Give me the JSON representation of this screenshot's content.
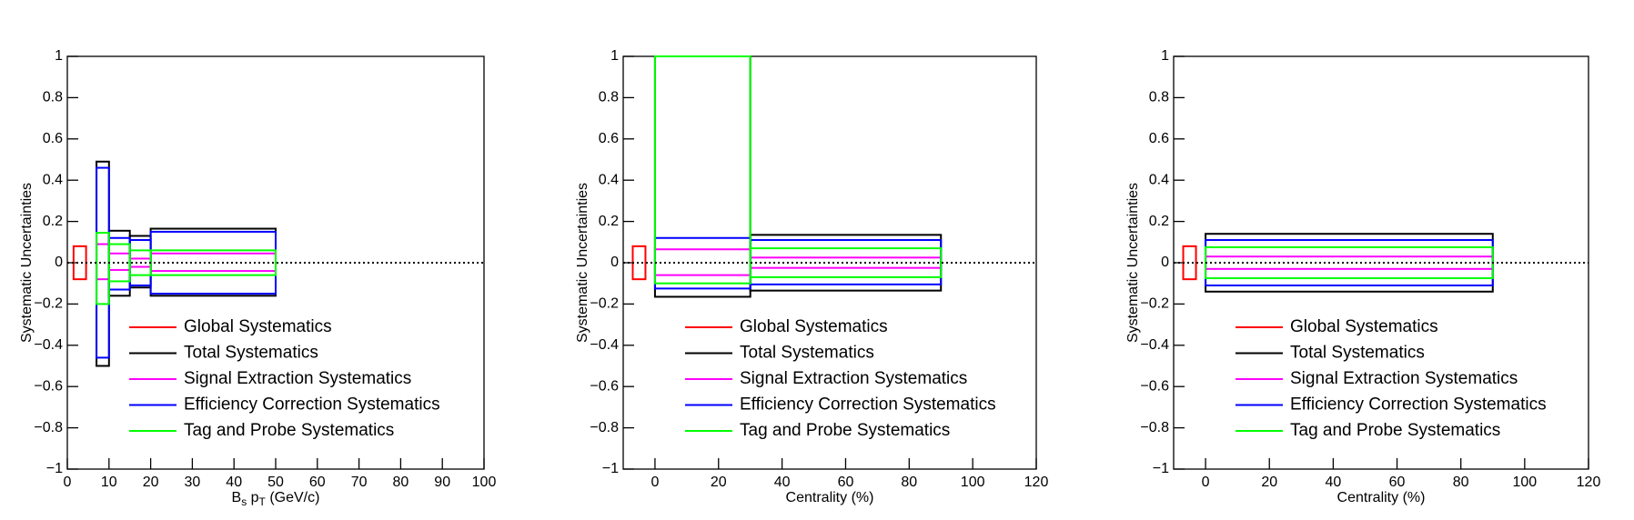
{
  "chart_data": [
    {
      "type": "box",
      "y_label": "Systematic Uncertainties",
      "x_label_parts": [
        "B",
        "s",
        " p",
        "T",
        " (GeV/c)"
      ],
      "xlim": [
        0,
        100
      ],
      "xticks": [
        0,
        10,
        20,
        30,
        40,
        50,
        60,
        70,
        80,
        90,
        100
      ],
      "ylim": [
        -1,
        1
      ],
      "yticks": [
        {
          "value": -1,
          "label": "−1"
        },
        {
          "value": -0.8,
          "label": "−0.8"
        },
        {
          "value": -0.6,
          "label": "−0.6"
        },
        {
          "value": -0.4,
          "label": "−0.4"
        },
        {
          "value": -0.2,
          "label": "−0.2"
        },
        0,
        0.2,
        0.4,
        0.6,
        0.8,
        1
      ],
      "hline": 0,
      "series": [
        {
          "name": "Global Systematics",
          "color": "#ff0000",
          "bins": [
            1.5,
            4.5
          ],
          "high": [
            0.08
          ],
          "low": [
            -0.08
          ]
        },
        {
          "name": "Total Systematics",
          "color": "#000000",
          "bins": [
            7,
            10,
            15,
            20,
            50
          ],
          "high": [
            0.49,
            0.155,
            0.13,
            0.165
          ],
          "low": [
            -0.5,
            -0.16,
            -0.12,
            -0.16
          ]
        },
        {
          "name": "Signal Extraction Systematics",
          "color": "#ff00ff",
          "bins": [
            7,
            10,
            15,
            20,
            50
          ],
          "high": [
            0.09,
            0.045,
            0.02,
            0.045
          ],
          "low": [
            -0.08,
            -0.035,
            -0.02,
            -0.04
          ]
        },
        {
          "name": "Efficiency Correction Systematics",
          "color": "#0000ff",
          "bins": [
            7,
            10,
            15,
            20,
            50
          ],
          "high": [
            0.46,
            0.12,
            0.11,
            0.15
          ],
          "low": [
            -0.46,
            -0.13,
            -0.11,
            -0.15
          ]
        },
        {
          "name": "Tag and Probe Systematics",
          "color": "#00ff00",
          "bins": [
            7,
            10,
            15,
            20,
            50
          ],
          "high": [
            0.145,
            0.09,
            0.06,
            0.06
          ],
          "low": [
            -0.2,
            -0.09,
            -0.06,
            -0.06
          ]
        }
      ]
    },
    {
      "type": "box",
      "y_label": "Systematic Uncertainties",
      "x_label_parts": [
        "Centrality (%)"
      ],
      "xlim": [
        -10,
        120
      ],
      "xticks": [
        0,
        20,
        40,
        60,
        80,
        100,
        120
      ],
      "ylim": [
        -1,
        1
      ],
      "yticks": [
        {
          "value": -1,
          "label": "−1"
        },
        {
          "value": -0.8,
          "label": "−0.8"
        },
        {
          "value": -0.6,
          "label": "−0.6"
        },
        {
          "value": -0.4,
          "label": "−0.4"
        },
        {
          "value": -0.2,
          "label": "−0.2"
        },
        0,
        0.2,
        0.4,
        0.6,
        0.8,
        1
      ],
      "hline": 0,
      "series": [
        {
          "name": "Global Systematics",
          "color": "#ff0000",
          "bins": [
            -7,
            -3
          ],
          "high": [
            0.08
          ],
          "low": [
            -0.08
          ]
        },
        {
          "name": "Total Systematics",
          "color": "#000000",
          "bins": [
            0,
            30,
            90
          ],
          "high": [
            1,
            0.135
          ],
          "low": [
            -0.165,
            -0.135
          ]
        },
        {
          "name": "Signal Extraction Systematics",
          "color": "#ff00ff",
          "bins": [
            0,
            30,
            90
          ],
          "high": [
            0.065,
            0.025
          ],
          "low": [
            -0.06,
            -0.025
          ]
        },
        {
          "name": "Efficiency Correction Systematics",
          "color": "#0000ff",
          "bins": [
            0,
            30,
            90
          ],
          "high": [
            0.12,
            0.11
          ],
          "low": [
            -0.125,
            -0.105
          ]
        },
        {
          "name": "Tag and Probe Systematics",
          "color": "#00ff00",
          "bins": [
            0,
            30,
            90
          ],
          "high": [
            1,
            0.07
          ],
          "low": [
            -0.1,
            -0.07
          ]
        }
      ]
    },
    {
      "type": "box",
      "y_label": "Systematic Uncertainties",
      "x_label_parts": [
        "Centrality (%)"
      ],
      "xlim": [
        -10,
        120
      ],
      "xticks": [
        0,
        20,
        40,
        60,
        80,
        100,
        120
      ],
      "ylim": [
        -1,
        1
      ],
      "yticks": [
        {
          "value": -1,
          "label": "−1"
        },
        {
          "value": -0.8,
          "label": "−0.8"
        },
        {
          "value": -0.6,
          "label": "−0.6"
        },
        {
          "value": -0.4,
          "label": "−0.4"
        },
        {
          "value": -0.2,
          "label": "−0.2"
        },
        0,
        0.2,
        0.4,
        0.6,
        0.8,
        1
      ],
      "hline": 0,
      "series": [
        {
          "name": "Global Systematics",
          "color": "#ff0000",
          "bins": [
            -7,
            -3
          ],
          "high": [
            0.08
          ],
          "low": [
            -0.08
          ]
        },
        {
          "name": "Total Systematics",
          "color": "#000000",
          "bins": [
            0,
            90
          ],
          "high": [
            0.14
          ],
          "low": [
            -0.14
          ]
        },
        {
          "name": "Signal Extraction Systematics",
          "color": "#ff00ff",
          "bins": [
            0,
            90
          ],
          "high": [
            0.03
          ],
          "low": [
            -0.03
          ]
        },
        {
          "name": "Efficiency Correction Systematics",
          "color": "#0000ff",
          "bins": [
            0,
            90
          ],
          "high": [
            0.11
          ],
          "low": [
            -0.11
          ]
        },
        {
          "name": "Tag and Probe Systematics",
          "color": "#00ff00",
          "bins": [
            0,
            90
          ],
          "high": [
            0.075
          ],
          "low": [
            -0.075
          ]
        }
      ]
    }
  ]
}
